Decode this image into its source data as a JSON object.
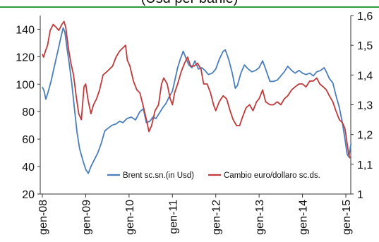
{
  "header": {
    "title_fragment": "(Usd per barile)"
  },
  "chart_data": {
    "type": "line",
    "title": "",
    "x": [
      "gen-08",
      "gen-09",
      "gen-10",
      "gen-11",
      "gen-12",
      "gen-13",
      "gen-14",
      "gen-15"
    ],
    "x_tick_labels": [
      "gen-08",
      "gen-09",
      "gen-10",
      "gen-11",
      "gen-12",
      "gen-13",
      "gen-14",
      "gen-15"
    ],
    "y_left": {
      "ylim": [
        20,
        150
      ],
      "ticks": [
        20,
        40,
        60,
        80,
        100,
        120,
        140
      ]
    },
    "y_right": {
      "ylim": [
        1.0,
        1.6
      ],
      "ticks": [
        "1",
        "1,1",
        "1,2",
        "1,3",
        "1,4",
        "1,5",
        "1,6"
      ]
    },
    "grid": false,
    "legend_position": "bottom-center",
    "series": [
      {
        "name": "Brent sc.sn.(in Usd)",
        "axis": "left",
        "color": "#4a7ebb",
        "points": [
          [
            2008.0,
            98
          ],
          [
            2008.04,
            95
          ],
          [
            2008.08,
            89
          ],
          [
            2008.13,
            94
          ],
          [
            2008.2,
            102
          ],
          [
            2008.27,
            112
          ],
          [
            2008.35,
            123
          ],
          [
            2008.42,
            133
          ],
          [
            2008.48,
            141
          ],
          [
            2008.52,
            138
          ],
          [
            2008.57,
            126
          ],
          [
            2008.62,
            115
          ],
          [
            2008.68,
            100
          ],
          [
            2008.74,
            82
          ],
          [
            2008.8,
            65
          ],
          [
            2008.86,
            53
          ],
          [
            2008.93,
            45
          ],
          [
            2009.0,
            38
          ],
          [
            2009.06,
            35
          ],
          [
            2009.12,
            40
          ],
          [
            2009.2,
            45
          ],
          [
            2009.28,
            50
          ],
          [
            2009.36,
            57
          ],
          [
            2009.44,
            66
          ],
          [
            2009.52,
            68
          ],
          [
            2009.6,
            70
          ],
          [
            2009.7,
            71
          ],
          [
            2009.78,
            73
          ],
          [
            2009.86,
            72
          ],
          [
            2009.95,
            75
          ],
          [
            2010.05,
            76
          ],
          [
            2010.15,
            74
          ],
          [
            2010.25,
            80
          ],
          [
            2010.33,
            82
          ],
          [
            2010.4,
            72
          ],
          [
            2010.48,
            73
          ],
          [
            2010.55,
            76
          ],
          [
            2010.62,
            75
          ],
          [
            2010.7,
            79
          ],
          [
            2010.78,
            83
          ],
          [
            2010.85,
            86
          ],
          [
            2010.93,
            91
          ],
          [
            2011.0,
            95
          ],
          [
            2011.05,
            102
          ],
          [
            2011.12,
            112
          ],
          [
            2011.18,
            118
          ],
          [
            2011.25,
            124
          ],
          [
            2011.3,
            120
          ],
          [
            2011.38,
            114
          ],
          [
            2011.45,
            112
          ],
          [
            2011.52,
            117
          ],
          [
            2011.6,
            111
          ],
          [
            2011.68,
            112
          ],
          [
            2011.75,
            110
          ],
          [
            2011.83,
            107
          ],
          [
            2011.92,
            108
          ],
          [
            2012.0,
            111
          ],
          [
            2012.08,
            118
          ],
          [
            2012.17,
            124
          ],
          [
            2012.22,
            125
          ],
          [
            2012.3,
            118
          ],
          [
            2012.38,
            108
          ],
          [
            2012.45,
            97
          ],
          [
            2012.5,
            99
          ],
          [
            2012.58,
            108
          ],
          [
            2012.66,
            114
          ],
          [
            2012.75,
            111
          ],
          [
            2012.83,
            109
          ],
          [
            2012.92,
            110
          ],
          [
            2013.0,
            112
          ],
          [
            2013.08,
            117
          ],
          [
            2013.15,
            111
          ],
          [
            2013.25,
            102
          ],
          [
            2013.33,
            102
          ],
          [
            2013.42,
            103
          ],
          [
            2013.5,
            106
          ],
          [
            2013.58,
            109
          ],
          [
            2013.66,
            113
          ],
          [
            2013.75,
            110
          ],
          [
            2013.83,
            108
          ],
          [
            2013.92,
            110
          ],
          [
            2014.0,
            108
          ],
          [
            2014.08,
            107
          ],
          [
            2014.17,
            108
          ],
          [
            2014.25,
            106
          ],
          [
            2014.33,
            109
          ],
          [
            2014.42,
            110
          ],
          [
            2014.5,
            112
          ],
          [
            2014.55,
            109
          ],
          [
            2014.62,
            104
          ],
          [
            2014.7,
            101
          ],
          [
            2014.77,
            92
          ],
          [
            2014.85,
            83
          ],
          [
            2014.92,
            72
          ],
          [
            2014.98,
            60
          ],
          [
            2015.03,
            49
          ],
          [
            2015.07,
            47
          ],
          [
            2015.12,
            57
          ]
        ]
      },
      {
        "name": "Cambio euro/dollaro sc.ds.",
        "axis": "right",
        "color": "#c0393b",
        "points": [
          [
            2008.0,
            1.47
          ],
          [
            2008.03,
            1.46
          ],
          [
            2008.07,
            1.48
          ],
          [
            2008.12,
            1.5
          ],
          [
            2008.18,
            1.55
          ],
          [
            2008.25,
            1.57
          ],
          [
            2008.32,
            1.56
          ],
          [
            2008.38,
            1.55
          ],
          [
            2008.45,
            1.57
          ],
          [
            2008.5,
            1.58
          ],
          [
            2008.54,
            1.56
          ],
          [
            2008.6,
            1.49
          ],
          [
            2008.66,
            1.44
          ],
          [
            2008.72,
            1.4
          ],
          [
            2008.78,
            1.33
          ],
          [
            2008.84,
            1.27
          ],
          [
            2008.9,
            1.25
          ],
          [
            2008.96,
            1.36
          ],
          [
            2009.0,
            1.37
          ],
          [
            2009.05,
            1.32
          ],
          [
            2009.12,
            1.27
          ],
          [
            2009.18,
            1.3
          ],
          [
            2009.25,
            1.32
          ],
          [
            2009.32,
            1.35
          ],
          [
            2009.4,
            1.4
          ],
          [
            2009.48,
            1.41
          ],
          [
            2009.55,
            1.42
          ],
          [
            2009.62,
            1.43
          ],
          [
            2009.7,
            1.46
          ],
          [
            2009.78,
            1.48
          ],
          [
            2009.85,
            1.49
          ],
          [
            2009.92,
            1.5
          ],
          [
            2009.96,
            1.45
          ],
          [
            2010.02,
            1.43
          ],
          [
            2010.1,
            1.38
          ],
          [
            2010.18,
            1.35
          ],
          [
            2010.25,
            1.34
          ],
          [
            2010.32,
            1.3
          ],
          [
            2010.4,
            1.25
          ],
          [
            2010.46,
            1.21
          ],
          [
            2010.52,
            1.23
          ],
          [
            2010.6,
            1.28
          ],
          [
            2010.68,
            1.3
          ],
          [
            2010.75,
            1.37
          ],
          [
            2010.8,
            1.39
          ],
          [
            2010.88,
            1.37
          ],
          [
            2010.95,
            1.32
          ],
          [
            2011.0,
            1.3
          ],
          [
            2011.05,
            1.34
          ],
          [
            2011.12,
            1.37
          ],
          [
            2011.2,
            1.41
          ],
          [
            2011.28,
            1.44
          ],
          [
            2011.35,
            1.46
          ],
          [
            2011.42,
            1.43
          ],
          [
            2011.5,
            1.43
          ],
          [
            2011.58,
            1.44
          ],
          [
            2011.66,
            1.42
          ],
          [
            2011.72,
            1.37
          ],
          [
            2011.8,
            1.37
          ],
          [
            2011.88,
            1.34
          ],
          [
            2011.95,
            1.3
          ],
          [
            2012.0,
            1.28
          ],
          [
            2012.08,
            1.31
          ],
          [
            2012.17,
            1.33
          ],
          [
            2012.25,
            1.32
          ],
          [
            2012.33,
            1.28
          ],
          [
            2012.4,
            1.25
          ],
          [
            2012.48,
            1.23
          ],
          [
            2012.55,
            1.23
          ],
          [
            2012.62,
            1.26
          ],
          [
            2012.7,
            1.29
          ],
          [
            2012.78,
            1.3
          ],
          [
            2012.86,
            1.28
          ],
          [
            2012.94,
            1.31
          ],
          [
            2013.0,
            1.32
          ],
          [
            2013.08,
            1.35
          ],
          [
            2013.15,
            1.31
          ],
          [
            2013.25,
            1.3
          ],
          [
            2013.33,
            1.3
          ],
          [
            2013.42,
            1.31
          ],
          [
            2013.5,
            1.3
          ],
          [
            2013.58,
            1.32
          ],
          [
            2013.66,
            1.33
          ],
          [
            2013.75,
            1.35
          ],
          [
            2013.83,
            1.36
          ],
          [
            2013.92,
            1.37
          ],
          [
            2014.0,
            1.37
          ],
          [
            2014.08,
            1.36
          ],
          [
            2014.17,
            1.38
          ],
          [
            2014.25,
            1.38
          ],
          [
            2014.33,
            1.39
          ],
          [
            2014.4,
            1.37
          ],
          [
            2014.48,
            1.36
          ],
          [
            2014.55,
            1.35
          ],
          [
            2014.62,
            1.33
          ],
          [
            2014.7,
            1.31
          ],
          [
            2014.77,
            1.28
          ],
          [
            2014.85,
            1.25
          ],
          [
            2014.92,
            1.24
          ],
          [
            2014.98,
            1.22
          ],
          [
            2015.03,
            1.17
          ],
          [
            2015.07,
            1.13
          ],
          [
            2015.1,
            1.12
          ]
        ]
      }
    ]
  }
}
